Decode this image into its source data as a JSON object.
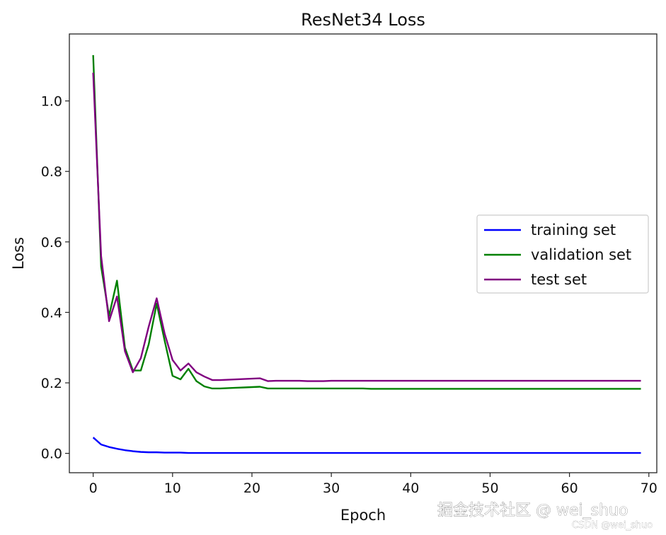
{
  "chart_data": {
    "type": "line",
    "title": "ResNet34 Loss",
    "xlabel": "Epoch",
    "ylabel": "Loss",
    "xlim": [
      -3,
      71
    ],
    "ylim": [
      -0.055,
      1.19
    ],
    "xticks": [
      0,
      10,
      20,
      30,
      40,
      50,
      60,
      70
    ],
    "yticks": [
      0.0,
      0.2,
      0.4,
      0.6,
      0.8,
      1.0
    ],
    "ytick_labels": [
      "0.0",
      "0.2",
      "0.4",
      "0.6",
      "0.8",
      "1.0"
    ],
    "grid": false,
    "legend_position": "center-right",
    "x": [
      0,
      1,
      2,
      3,
      4,
      5,
      6,
      7,
      8,
      9,
      10,
      11,
      12,
      13,
      14,
      15,
      16,
      17,
      18,
      19,
      20,
      21,
      22,
      23,
      24,
      25,
      26,
      27,
      28,
      29,
      30,
      31,
      32,
      33,
      34,
      35,
      36,
      37,
      38,
      39,
      40,
      41,
      42,
      43,
      44,
      45,
      46,
      47,
      48,
      49,
      50,
      51,
      52,
      53,
      54,
      55,
      56,
      57,
      58,
      59,
      60,
      61,
      62,
      63,
      64,
      65,
      66,
      67,
      68,
      69
    ],
    "series": [
      {
        "name": "training set",
        "color": "#0000ff",
        "values": [
          0.045,
          0.025,
          0.018,
          0.013,
          0.009,
          0.006,
          0.004,
          0.003,
          0.003,
          0.002,
          0.002,
          0.002,
          0.001,
          0.001,
          0.001,
          0.001,
          0.001,
          0.001,
          0.001,
          0.001,
          0.001,
          0.001,
          0.001,
          0.001,
          0.001,
          0.001,
          0.001,
          0.001,
          0.001,
          0.001,
          0.001,
          0.001,
          0.001,
          0.001,
          0.001,
          0.001,
          0.001,
          0.001,
          0.001,
          0.001,
          0.001,
          0.001,
          0.001,
          0.001,
          0.001,
          0.001,
          0.001,
          0.001,
          0.001,
          0.001,
          0.001,
          0.001,
          0.001,
          0.001,
          0.001,
          0.001,
          0.001,
          0.001,
          0.001,
          0.001,
          0.001,
          0.001,
          0.001,
          0.001,
          0.001,
          0.001,
          0.001,
          0.001,
          0.001,
          0.001
        ]
      },
      {
        "name": "validation set",
        "color": "#008000",
        "values": [
          1.13,
          0.53,
          0.39,
          0.49,
          0.3,
          0.235,
          0.235,
          0.31,
          0.425,
          0.32,
          0.22,
          0.21,
          0.24,
          0.205,
          0.19,
          0.184,
          0.184,
          0.185,
          0.186,
          0.187,
          0.188,
          0.189,
          0.184,
          0.184,
          0.184,
          0.184,
          0.184,
          0.184,
          0.184,
          0.184,
          0.184,
          0.184,
          0.184,
          0.184,
          0.184,
          0.183,
          0.183,
          0.183,
          0.183,
          0.183,
          0.183,
          0.183,
          0.183,
          0.183,
          0.183,
          0.183,
          0.183,
          0.183,
          0.183,
          0.183,
          0.183,
          0.183,
          0.183,
          0.183,
          0.183,
          0.183,
          0.183,
          0.183,
          0.183,
          0.183,
          0.183,
          0.183,
          0.183,
          0.183,
          0.183,
          0.183,
          0.183,
          0.183,
          0.183,
          0.183
        ]
      },
      {
        "name": "test set",
        "color": "#800080",
        "values": [
          1.08,
          0.56,
          0.375,
          0.445,
          0.29,
          0.23,
          0.27,
          0.36,
          0.44,
          0.34,
          0.265,
          0.235,
          0.255,
          0.23,
          0.218,
          0.208,
          0.208,
          0.209,
          0.21,
          0.211,
          0.212,
          0.213,
          0.205,
          0.206,
          0.206,
          0.206,
          0.206,
          0.205,
          0.205,
          0.205,
          0.206,
          0.206,
          0.206,
          0.206,
          0.206,
          0.206,
          0.206,
          0.206,
          0.206,
          0.206,
          0.206,
          0.206,
          0.206,
          0.206,
          0.206,
          0.206,
          0.206,
          0.206,
          0.206,
          0.206,
          0.206,
          0.206,
          0.206,
          0.206,
          0.206,
          0.206,
          0.206,
          0.206,
          0.206,
          0.206,
          0.206,
          0.206,
          0.206,
          0.206,
          0.206,
          0.206,
          0.206,
          0.206,
          0.206,
          0.206
        ]
      }
    ]
  },
  "watermark": {
    "main": "掘金技术社区 @ wei_shuo",
    "small": "CSDN @wei_shuo"
  }
}
